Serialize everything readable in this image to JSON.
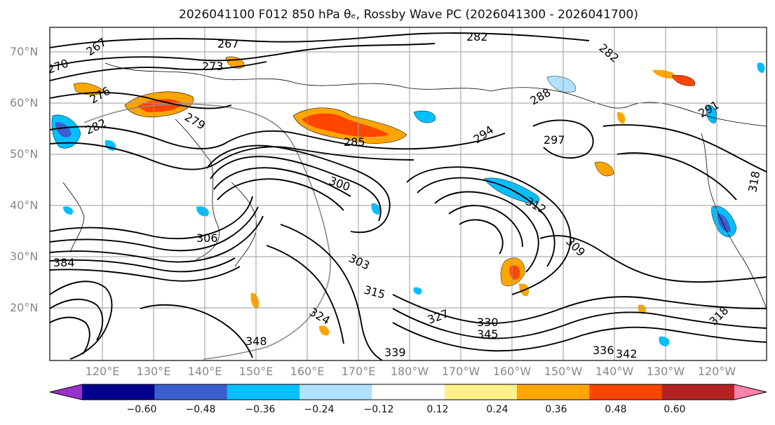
{
  "title": "2026041100 F012 850 hPa θₑ, Rossby Wave PC (2026041300 - 2026041700)",
  "lat_labels": [
    "70°N",
    "60°N",
    "50°N",
    "40°N",
    "30°N",
    "20°N"
  ],
  "lon_labels": [
    "120°E",
    "130°E",
    "140°E",
    "150°E",
    "160°E",
    "170°E",
    "180°W",
    "170°W",
    "160°W",
    "150°W",
    "140°W",
    "130°W",
    "120°W"
  ],
  "contour_labels": [
    "267",
    "267",
    "270",
    "273",
    "276",
    "279",
    "282",
    "282",
    "282",
    "285",
    "288",
    "291",
    "294",
    "297",
    "300",
    "303",
    "306",
    "309",
    "312",
    "315",
    "318",
    "318",
    "324",
    "327",
    "330",
    "336",
    "339",
    "342",
    "345",
    "348",
    "384"
  ],
  "colorbar": {
    "colors": [
      "#9932cc",
      "#00008b",
      "#3a5fcd",
      "#00bfff",
      "#b0e2ff",
      "#ffffff",
      "#fff08a",
      "#ffa500",
      "#ff4500",
      "#b22222",
      "#ff82ab"
    ],
    "tick_labels": [
      "−0.60",
      "−0.48",
      "−0.36",
      "−0.24",
      "−0.12",
      "0.12",
      "0.24",
      "0.36",
      "0.48",
      "0.60"
    ],
    "extend": "both"
  }
}
